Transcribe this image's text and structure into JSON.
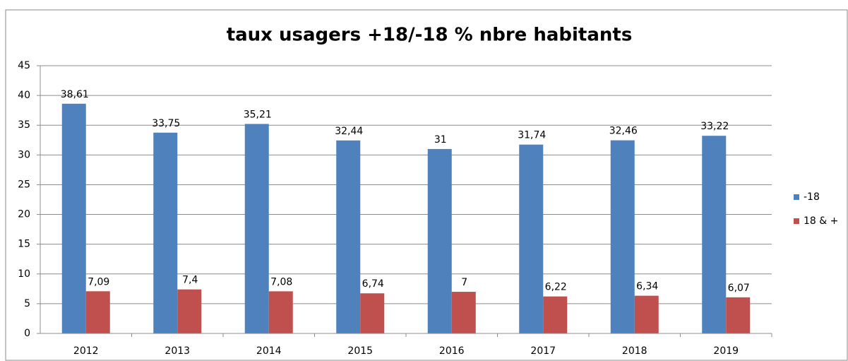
{
  "chart_data": {
    "type": "bar",
    "title": "taux usagers +18/-18 % nbre habitants",
    "categories": [
      "2012",
      "2013",
      "2014",
      "2015",
      "2016",
      "2017",
      "2018",
      "2019"
    ],
    "series": [
      {
        "name": "-18",
        "color": "#4f81bd",
        "values": [
          38.61,
          33.75,
          35.21,
          32.44,
          31,
          31.74,
          32.46,
          33.22
        ],
        "value_labels": [
          "38,61",
          "33,75",
          "35,21",
          "32,44",
          "31",
          "31,74",
          "32,46",
          "33,22"
        ]
      },
      {
        "name": "18 & +",
        "color": "#c0504d",
        "values": [
          7.09,
          7.4,
          7.08,
          6.74,
          7,
          6.22,
          6.34,
          6.07
        ],
        "value_labels": [
          "7,09",
          "7,4",
          "7,08",
          "6,74",
          "7",
          "6,22",
          "6,34",
          "6,07"
        ]
      }
    ],
    "ylim": [
      0,
      45
    ],
    "yticks": [
      0,
      5,
      10,
      15,
      20,
      25,
      30,
      35,
      40,
      45
    ],
    "grid": true,
    "legend": "right"
  }
}
